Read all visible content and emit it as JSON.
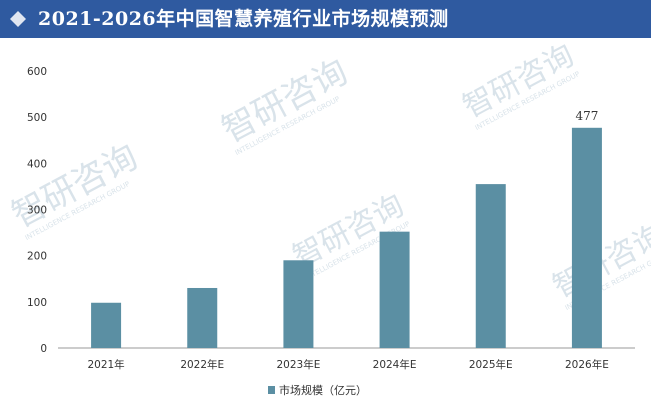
{
  "header": {
    "title": "2021-2026年中国智慧养殖行业市场规模预测",
    "background": "#2f5aa0"
  },
  "watermark": {
    "text": "智研咨询",
    "subtext": "INTELLIGENCE RESEARCH GROUP"
  },
  "chart_data": {
    "type": "bar",
    "title": "2021-2026年中国智慧养殖行业市场规模预测",
    "categories": [
      "2021年",
      "2022年E",
      "2023年E",
      "2024年E",
      "2025年E",
      "2026年E"
    ],
    "series": [
      {
        "name": "市场规模（亿元）",
        "values": [
          98,
          130,
          190,
          252,
          355,
          477
        ],
        "color": "#5b8fa3"
      }
    ],
    "data_labels": [
      {
        "category": "2026年E",
        "text": "477"
      }
    ],
    "yticks": [
      "0",
      "100",
      "200",
      "300",
      "400",
      "500",
      "600"
    ],
    "ylim": [
      0,
      600
    ],
    "grid": false,
    "legend": "bottom-center"
  }
}
